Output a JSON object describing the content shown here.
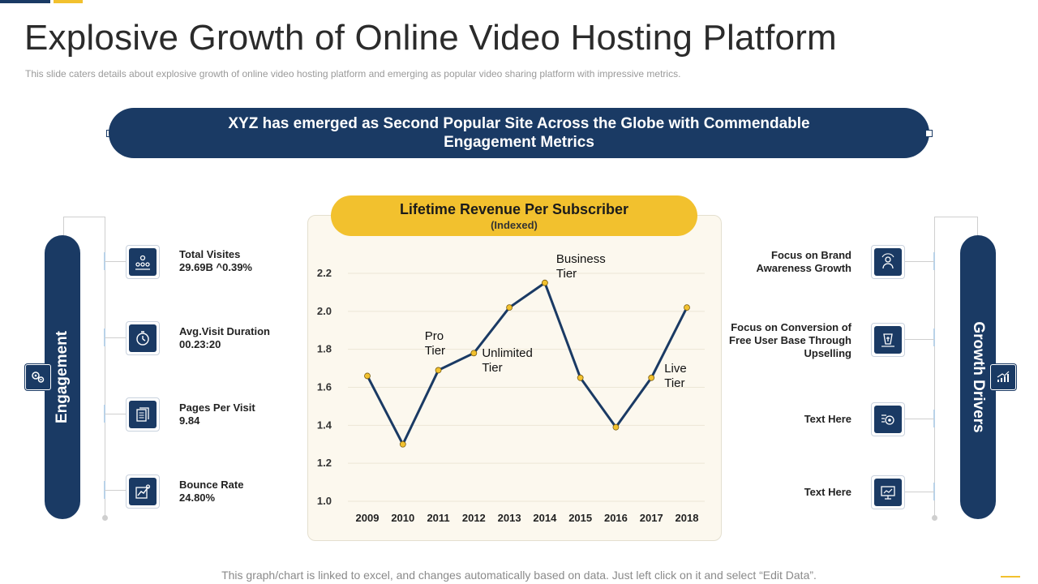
{
  "header": {
    "title": "Explosive Growth of Online Video Hosting Platform",
    "subtitle": "This slide caters details about explosive growth of online video hosting platform and emerging as popular video sharing platform with impressive metrics."
  },
  "banner": {
    "text": "XYZ has emerged as Second Popular Site Across the Globe with Commendable Engagement Metrics"
  },
  "engagement": {
    "label": "Engagement",
    "items": [
      {
        "label": "Total Visites",
        "value": "29.69B ^0.39%",
        "icon": "people-network-icon"
      },
      {
        "label": "Avg.Visit Duration",
        "value": "00.23:20",
        "icon": "stopwatch-icon"
      },
      {
        "label": "Pages Per Visit",
        "value": "9.84",
        "icon": "document-pages-icon"
      },
      {
        "label": "Bounce Rate",
        "value": "24.80%",
        "icon": "growth-chart-icon"
      }
    ]
  },
  "growth_drivers": {
    "label": "Growth Drivers",
    "items": [
      {
        "label": "Focus on Brand Awareness Growth",
        "icon": "brand-awareness-icon"
      },
      {
        "label": "Focus on Conversion of Free User Base Through Upselling",
        "icon": "conversion-icon"
      },
      {
        "label": "Text Here",
        "icon": "gear-money-icon"
      },
      {
        "label": "Text Here",
        "icon": "presentation-icon"
      }
    ]
  },
  "chart_data": {
    "type": "line",
    "title": "Lifetime Revenue Per Subscriber",
    "subtitle": "(Indexed)",
    "categories": [
      "2009",
      "2010",
      "2011",
      "2012",
      "2013",
      "2014",
      "2015",
      "2016",
      "2017",
      "2018"
    ],
    "series": [
      {
        "name": "Lifetime Revenue Per Subscriber",
        "values": [
          1.66,
          1.3,
          1.69,
          1.78,
          2.02,
          2.15,
          1.65,
          1.39,
          1.65,
          2.02
        ]
      }
    ],
    "ylim": [
      1.0,
      2.2
    ],
    "yticks": [
      "1.0",
      "1.2",
      "1.4",
      "1.6",
      "1.8",
      "2.0",
      "2.2"
    ],
    "annotations": [
      {
        "text_lines": [
          "Pro",
          "Tier"
        ],
        "near": "2010"
      },
      {
        "text_lines": [
          "Unlimited",
          "Tier"
        ],
        "near": "2012"
      },
      {
        "text_lines": [
          "Business",
          "Tier"
        ],
        "near": "2014"
      },
      {
        "text_lines": [
          "Live",
          "Tier"
        ],
        "near": "2017"
      }
    ],
    "colors": {
      "line": "#1a3a64",
      "marker": "#f2c12e"
    }
  },
  "footer": {
    "note": "This graph/chart is linked to excel, and changes automatically based on data. Just left click on it and select “Edit Data”."
  }
}
